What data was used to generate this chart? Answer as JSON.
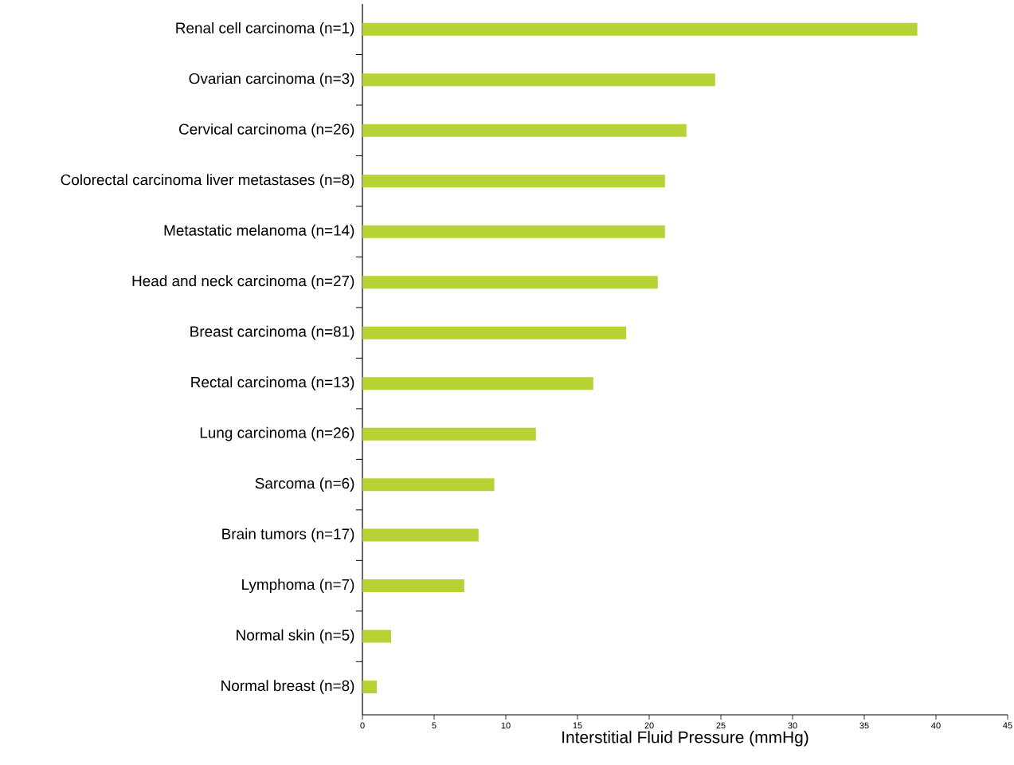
{
  "chart_data": {
    "type": "bar",
    "orientation": "horizontal",
    "xlabel": "Interstitial Fluid Pressure (mmHg)",
    "categories": [
      "Renal cell carcinoma (n=1)",
      "Ovarian carcinoma (n=3)",
      "Cervical carcinoma (n=26)",
      "Colorectal carcinoma liver metastases (n=8)",
      "Metastatic melanoma (n=14)",
      "Head and neck carcinoma (n=27)",
      "Breast carcinoma (n=81)",
      "Rectal carcinoma (n=13)",
      "Lung carcinoma (n=26)",
      "Sarcoma (n=6)",
      "Brain tumors (n=17)",
      "Lymphoma (n=7)",
      "Normal skin (n=5)",
      "Normal breast (n=8)"
    ],
    "values": [
      38.7,
      24.6,
      22.6,
      21.1,
      21.1,
      20.6,
      18.4,
      16.1,
      12.1,
      9.2,
      8.1,
      7.1,
      2.0,
      1.0
    ],
    "color": "#b5d334",
    "xlim": [
      0,
      45
    ],
    "xticks": [
      0,
      5,
      10,
      15,
      20,
      25,
      30,
      35,
      40,
      45
    ]
  }
}
